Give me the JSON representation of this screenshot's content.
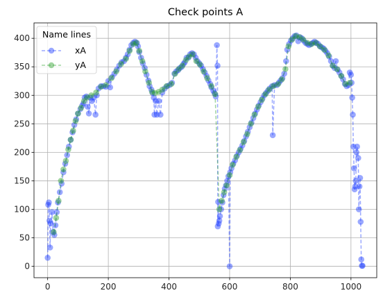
{
  "chart_data": {
    "type": "scatter",
    "title": "Check points A",
    "xlabel": "",
    "ylabel": "",
    "xlim": [
      -45,
      1085
    ],
    "ylim": [
      -20,
      427
    ],
    "xticks": [
      0,
      200,
      400,
      600,
      800,
      1000
    ],
    "yticks": [
      0,
      50,
      100,
      150,
      200,
      250,
      300,
      350,
      400
    ],
    "grid": true,
    "legend": {
      "title": "Name lines",
      "placement": "top-left"
    },
    "series": [
      {
        "name": "xA",
        "color": "#1f3fff",
        "style": "dashed-line-with-markers",
        "points": [
          [
            0,
            15
          ],
          [
            2,
            108
          ],
          [
            4,
            112
          ],
          [
            6,
            80
          ],
          [
            8,
            33
          ],
          [
            10,
            75
          ],
          [
            14,
            95
          ],
          [
            18,
            60
          ],
          [
            22,
            55
          ],
          [
            26,
            72
          ],
          [
            30,
            95
          ],
          [
            34,
            112
          ],
          [
            40,
            130
          ],
          [
            46,
            145
          ],
          [
            52,
            165
          ],
          [
            58,
            180
          ],
          [
            64,
            195
          ],
          [
            70,
            210
          ],
          [
            76,
            222
          ],
          [
            82,
            235
          ],
          [
            88,
            248
          ],
          [
            94,
            258
          ],
          [
            100,
            268
          ],
          [
            108,
            276
          ],
          [
            114,
            282
          ],
          [
            118,
            286
          ],
          [
            122,
            296
          ],
          [
            128,
            298
          ],
          [
            132,
            280
          ],
          [
            136,
            268
          ],
          [
            140,
            296
          ],
          [
            146,
            290
          ],
          [
            152,
            296
          ],
          [
            158,
            266
          ],
          [
            162,
            300
          ],
          [
            168,
            312
          ],
          [
            176,
            316
          ],
          [
            184,
            316
          ],
          [
            192,
            315
          ],
          [
            200,
            325
          ],
          [
            206,
            314
          ],
          [
            212,
            332
          ],
          [
            220,
            338
          ],
          [
            228,
            345
          ],
          [
            236,
            352
          ],
          [
            244,
            358
          ],
          [
            252,
            360
          ],
          [
            258,
            366
          ],
          [
            264,
            372
          ],
          [
            270,
            380
          ],
          [
            276,
            388
          ],
          [
            282,
            392
          ],
          [
            288,
            394
          ],
          [
            294,
            392
          ],
          [
            298,
            386
          ],
          [
            302,
            376
          ],
          [
            308,
            366
          ],
          [
            314,
            356
          ],
          [
            320,
            348
          ],
          [
            326,
            336
          ],
          [
            332,
            326
          ],
          [
            336,
            316
          ],
          [
            342,
            310
          ],
          [
            346,
            304
          ],
          [
            350,
            296
          ],
          [
            352,
            266
          ],
          [
            356,
            290
          ],
          [
            360,
            266
          ],
          [
            366,
            290
          ],
          [
            372,
            266
          ],
          [
            378,
            305
          ],
          [
            386,
            312
          ],
          [
            394,
            316
          ],
          [
            402,
            318
          ],
          [
            410,
            322
          ],
          [
            418,
            338
          ],
          [
            424,
            342
          ],
          [
            430,
            344
          ],
          [
            436,
            348
          ],
          [
            442,
            350
          ],
          [
            448,
            355
          ],
          [
            452,
            358
          ],
          [
            458,
            366
          ],
          [
            464,
            366
          ],
          [
            470,
            372
          ],
          [
            476,
            374
          ],
          [
            482,
            372
          ],
          [
            488,
            366
          ],
          [
            494,
            360
          ],
          [
            500,
            356
          ],
          [
            506,
            352
          ],
          [
            512,
            346
          ],
          [
            518,
            340
          ],
          [
            524,
            334
          ],
          [
            530,
            326
          ],
          [
            536,
            320
          ],
          [
            540,
            314
          ],
          [
            546,
            308
          ],
          [
            550,
            304
          ],
          [
            554,
            298
          ],
          [
            558,
            388
          ],
          [
            560,
            352
          ],
          [
            561,
            70
          ],
          [
            562,
            113
          ],
          [
            564,
            75
          ],
          [
            566,
            80
          ],
          [
            568,
            88
          ],
          [
            572,
            100
          ],
          [
            576,
            112
          ],
          [
            580,
            125
          ],
          [
            584,
            136
          ],
          [
            588,
            142
          ],
          [
            592,
            150
          ],
          [
            596,
            158
          ],
          [
            600,
            0
          ],
          [
            602,
            165
          ],
          [
            606,
            172
          ],
          [
            612,
            180
          ],
          [
            618,
            186
          ],
          [
            624,
            194
          ],
          [
            630,
            200
          ],
          [
            636,
            206
          ],
          [
            642,
            212
          ],
          [
            648,
            220
          ],
          [
            654,
            228
          ],
          [
            660,
            236
          ],
          [
            666,
            244
          ],
          [
            672,
            252
          ],
          [
            678,
            260
          ],
          [
            684,
            268
          ],
          [
            690,
            275
          ],
          [
            696,
            282
          ],
          [
            702,
            288
          ],
          [
            708,
            294
          ],
          [
            714,
            300
          ],
          [
            720,
            304
          ],
          [
            726,
            308
          ],
          [
            732,
            312
          ],
          [
            740,
            316
          ],
          [
            742,
            230
          ],
          [
            748,
            318
          ],
          [
            756,
            318
          ],
          [
            762,
            322
          ],
          [
            768,
            326
          ],
          [
            774,
            330
          ],
          [
            780,
            338
          ],
          [
            786,
            360
          ],
          [
            790,
            380
          ],
          [
            796,
            390
          ],
          [
            802,
            396
          ],
          [
            808,
            400
          ],
          [
            814,
            404
          ],
          [
            820,
            405
          ],
          [
            826,
            395
          ],
          [
            832,
            402
          ],
          [
            838,
            400
          ],
          [
            844,
            396
          ],
          [
            850,
            392
          ],
          [
            856,
            390
          ],
          [
            862,
            388
          ],
          [
            868,
            390
          ],
          [
            874,
            392
          ],
          [
            880,
            394
          ],
          [
            886,
            392
          ],
          [
            892,
            390
          ],
          [
            898,
            386
          ],
          [
            904,
            384
          ],
          [
            910,
            382
          ],
          [
            916,
            378
          ],
          [
            922,
            374
          ],
          [
            928,
            368
          ],
          [
            934,
            360
          ],
          [
            940,
            352
          ],
          [
            946,
            348
          ],
          [
            950,
            360
          ],
          [
            956,
            345
          ],
          [
            962,
            340
          ],
          [
            968,
            334
          ],
          [
            974,
            328
          ],
          [
            980,
            320
          ],
          [
            986,
            316
          ],
          [
            992,
            318
          ],
          [
            996,
            340
          ],
          [
            1000,
            336
          ],
          [
            1002,
            322
          ],
          [
            1004,
            296
          ],
          [
            1006,
            266
          ],
          [
            1008,
            210
          ],
          [
            1010,
            172
          ],
          [
            1012,
            135
          ],
          [
            1014,
            140
          ],
          [
            1016,
            150
          ],
          [
            1018,
            200
          ],
          [
            1020,
            210
          ],
          [
            1024,
            190
          ],
          [
            1026,
            100
          ],
          [
            1028,
            140
          ],
          [
            1030,
            155
          ],
          [
            1032,
            78
          ],
          [
            1034,
            12
          ],
          [
            1036,
            1
          ],
          [
            1038,
            1
          ]
        ]
      },
      {
        "name": "yA",
        "color": "#2ca02c",
        "style": "dashed-line-with-markers",
        "points": [
          [
            20,
            60
          ],
          [
            28,
            85
          ],
          [
            36,
            115
          ],
          [
            44,
            150
          ],
          [
            52,
            170
          ],
          [
            60,
            185
          ],
          [
            68,
            205
          ],
          [
            76,
            222
          ],
          [
            84,
            238
          ],
          [
            92,
            255
          ],
          [
            100,
            268
          ],
          [
            110,
            278
          ],
          [
            120,
            290
          ],
          [
            130,
            296
          ],
          [
            144,
            300
          ],
          [
            160,
            305
          ],
          [
            176,
            315
          ],
          [
            192,
            318
          ],
          [
            210,
            330
          ],
          [
            226,
            342
          ],
          [
            242,
            355
          ],
          [
            258,
            364
          ],
          [
            270,
            378
          ],
          [
            282,
            390
          ],
          [
            292,
            392
          ],
          [
            302,
            378
          ],
          [
            312,
            360
          ],
          [
            322,
            342
          ],
          [
            334,
            322
          ],
          [
            344,
            306
          ],
          [
            354,
            304
          ],
          [
            366,
            306
          ],
          [
            378,
            310
          ],
          [
            392,
            316
          ],
          [
            408,
            320
          ],
          [
            420,
            338
          ],
          [
            432,
            346
          ],
          [
            444,
            352
          ],
          [
            456,
            362
          ],
          [
            466,
            368
          ],
          [
            478,
            372
          ],
          [
            490,
            360
          ],
          [
            502,
            354
          ],
          [
            514,
            342
          ],
          [
            526,
            330
          ],
          [
            540,
            316
          ],
          [
            552,
            302
          ],
          [
            566,
            100
          ],
          [
            574,
            115
          ],
          [
            582,
            130
          ],
          [
            590,
            142
          ],
          [
            600,
            160
          ],
          [
            610,
            178
          ],
          [
            622,
            192
          ],
          [
            634,
            204
          ],
          [
            646,
            218
          ],
          [
            658,
            232
          ],
          [
            670,
            250
          ],
          [
            682,
            266
          ],
          [
            694,
            280
          ],
          [
            706,
            292
          ],
          [
            718,
            302
          ],
          [
            730,
            310
          ],
          [
            744,
            316
          ],
          [
            760,
            320
          ],
          [
            772,
            328
          ],
          [
            784,
            346
          ],
          [
            794,
            386
          ],
          [
            806,
            398
          ],
          [
            818,
            404
          ],
          [
            830,
            402
          ],
          [
            842,
            398
          ],
          [
            856,
            392
          ],
          [
            870,
            390
          ],
          [
            884,
            392
          ],
          [
            898,
            386
          ],
          [
            912,
            380
          ],
          [
            926,
            370
          ],
          [
            940,
            352
          ],
          [
            954,
            346
          ],
          [
            968,
            334
          ],
          [
            982,
            320
          ],
          [
            996,
            322
          ]
        ]
      }
    ]
  }
}
